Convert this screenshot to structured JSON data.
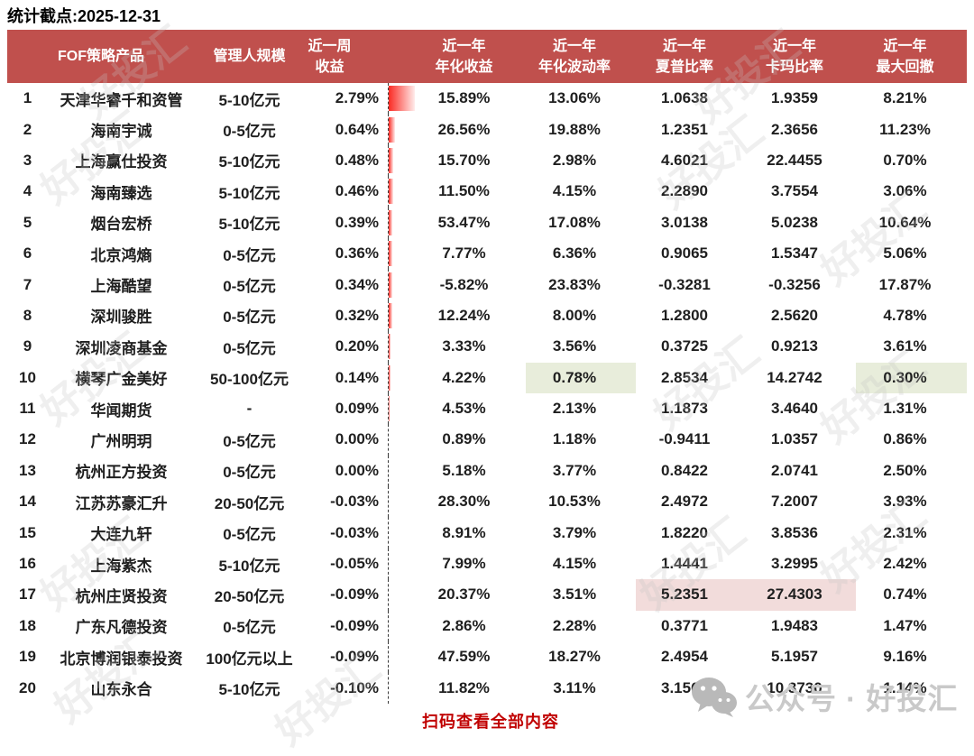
{
  "page": {
    "title": "统计截点:2025-12-31",
    "footer_scan_text": "扫码查看全部内容",
    "wechat_account": "公众号 · 好投汇",
    "watermark": "好投汇"
  },
  "colors": {
    "header_bg": "#C0504D",
    "header_text": "#FFFFFF",
    "data_bar_red": "#FA2B24",
    "green_highlight": "#E8EDDB",
    "pink_highlight": "#F2DCDB",
    "scan_text_red": "#C00000",
    "watermark_gray": "#C9C9C9"
  },
  "chart_data": {
    "type": "table",
    "title": "统计截点:2025-12-31",
    "columns": [
      "FOF策略产品",
      "管理人规模",
      "近一周\n收益",
      "近一年\n年化收益",
      "近一年\n年化波动率",
      "近一年\n夏普比率",
      "近一年\n卡玛比率",
      "近一年\n最大回撤"
    ],
    "data_bar": {
      "column": "week_return",
      "max_value_pct": 2.79,
      "axis_style": "dashed-line",
      "bar_color": "red-gradient"
    },
    "highlights": [
      {
        "rank": 10,
        "fields": [
          "volatility",
          "max_drawdown"
        ],
        "color": "green"
      },
      {
        "rank": 17,
        "fields": [
          "sharpe",
          "calmar"
        ],
        "color": "pink"
      }
    ],
    "rows": [
      {
        "rank": "1",
        "name": "天津华睿千和资管",
        "scale": "5-10亿元",
        "week_return": "2.79%",
        "ann_return": "15.89%",
        "volatility": "13.06%",
        "sharpe": "1.0638",
        "calmar": "1.9359",
        "max_drawdown": "8.21%"
      },
      {
        "rank": "2",
        "name": "海南宇诚",
        "scale": "0-5亿元",
        "week_return": "0.64%",
        "ann_return": "26.56%",
        "volatility": "19.88%",
        "sharpe": "1.2351",
        "calmar": "2.3656",
        "max_drawdown": "11.23%"
      },
      {
        "rank": "3",
        "name": "上海赢仕投资",
        "scale": "5-10亿元",
        "week_return": "0.48%",
        "ann_return": "15.70%",
        "volatility": "2.98%",
        "sharpe": "4.6021",
        "calmar": "22.4455",
        "max_drawdown": "0.70%"
      },
      {
        "rank": "4",
        "name": "海南臻选",
        "scale": "5-10亿元",
        "week_return": "0.46%",
        "ann_return": "11.50%",
        "volatility": "4.15%",
        "sharpe": "2.2890",
        "calmar": "3.7554",
        "max_drawdown": "3.06%"
      },
      {
        "rank": "5",
        "name": "烟台宏桥",
        "scale": "5-10亿元",
        "week_return": "0.39%",
        "ann_return": "53.47%",
        "volatility": "17.08%",
        "sharpe": "3.0138",
        "calmar": "5.0238",
        "max_drawdown": "10.64%"
      },
      {
        "rank": "6",
        "name": "北京鸿熵",
        "scale": "0-5亿元",
        "week_return": "0.36%",
        "ann_return": "7.77%",
        "volatility": "6.36%",
        "sharpe": "0.9065",
        "calmar": "1.5347",
        "max_drawdown": "5.06%"
      },
      {
        "rank": "7",
        "name": "上海酷望",
        "scale": "0-5亿元",
        "week_return": "0.34%",
        "ann_return": "-5.82%",
        "volatility": "23.83%",
        "sharpe": "-0.3281",
        "calmar": "-0.3256",
        "max_drawdown": "17.87%"
      },
      {
        "rank": "8",
        "name": "深圳骏胜",
        "scale": "0-5亿元",
        "week_return": "0.32%",
        "ann_return": "12.24%",
        "volatility": "8.00%",
        "sharpe": "1.2800",
        "calmar": "2.5620",
        "max_drawdown": "4.78%"
      },
      {
        "rank": "9",
        "name": "深圳凌商基金",
        "scale": "0-5亿元",
        "week_return": "0.20%",
        "ann_return": "3.33%",
        "volatility": "3.56%",
        "sharpe": "0.3725",
        "calmar": "0.9213",
        "max_drawdown": "3.61%"
      },
      {
        "rank": "10",
        "name": "横琴广金美好",
        "scale": "50-100亿元",
        "week_return": "0.14%",
        "ann_return": "4.22%",
        "volatility": "0.78%",
        "sharpe": "2.8534",
        "calmar": "14.2742",
        "max_drawdown": "0.30%",
        "hl": {
          "volatility": "hl-green",
          "max_drawdown": "hl-green"
        }
      },
      {
        "rank": "11",
        "name": "华闻期货",
        "scale": "-",
        "week_return": "0.09%",
        "ann_return": "4.53%",
        "volatility": "2.13%",
        "sharpe": "1.1873",
        "calmar": "3.4640",
        "max_drawdown": "1.31%"
      },
      {
        "rank": "12",
        "name": "广州明玥",
        "scale": "0-5亿元",
        "week_return": "0.00%",
        "ann_return": "0.89%",
        "volatility": "1.18%",
        "sharpe": "-0.9411",
        "calmar": "1.0357",
        "max_drawdown": "0.86%"
      },
      {
        "rank": "13",
        "name": "杭州正方投资",
        "scale": "0-5亿元",
        "week_return": "0.00%",
        "ann_return": "5.18%",
        "volatility": "3.77%",
        "sharpe": "0.8422",
        "calmar": "2.0741",
        "max_drawdown": "2.50%"
      },
      {
        "rank": "14",
        "name": "江苏苏豪汇升",
        "scale": "20-50亿元",
        "week_return": "-0.03%",
        "ann_return": "28.30%",
        "volatility": "10.53%",
        "sharpe": "2.4972",
        "calmar": "7.2007",
        "max_drawdown": "3.93%"
      },
      {
        "rank": "15",
        "name": "大连九轩",
        "scale": "0-5亿元",
        "week_return": "-0.03%",
        "ann_return": "8.91%",
        "volatility": "3.79%",
        "sharpe": "1.8220",
        "calmar": "3.8536",
        "max_drawdown": "2.31%"
      },
      {
        "rank": "16",
        "name": "上海紫杰",
        "scale": "5-10亿元",
        "week_return": "-0.05%",
        "ann_return": "7.99%",
        "volatility": "4.15%",
        "sharpe": "1.4441",
        "calmar": "3.2995",
        "max_drawdown": "2.42%"
      },
      {
        "rank": "17",
        "name": "杭州庄贤投资",
        "scale": "20-50亿元",
        "week_return": "-0.09%",
        "ann_return": "20.37%",
        "volatility": "3.51%",
        "sharpe": "5.2351",
        "calmar": "27.4303",
        "max_drawdown": "0.74%",
        "hl": {
          "sharpe": "hl-pink",
          "calmar": "hl-pink"
        }
      },
      {
        "rank": "18",
        "name": "广东凡德投资",
        "scale": "0-5亿元",
        "week_return": "-0.09%",
        "ann_return": "2.86%",
        "volatility": "2.28%",
        "sharpe": "0.3771",
        "calmar": "1.9483",
        "max_drawdown": "1.47%"
      },
      {
        "rank": "19",
        "name": "北京博润银泰投资",
        "scale": "100亿元以上",
        "week_return": "-0.09%",
        "ann_return": "47.59%",
        "volatility": "18.27%",
        "sharpe": "2.4954",
        "calmar": "5.1957",
        "max_drawdown": "9.16%"
      },
      {
        "rank": "20",
        "name": "山东永合",
        "scale": "5-10亿元",
        "week_return": "-0.10%",
        "ann_return": "11.82%",
        "volatility": "3.11%",
        "sharpe": "3.1561",
        "calmar": "10.3730",
        "max_drawdown": "1.14%"
      }
    ]
  }
}
